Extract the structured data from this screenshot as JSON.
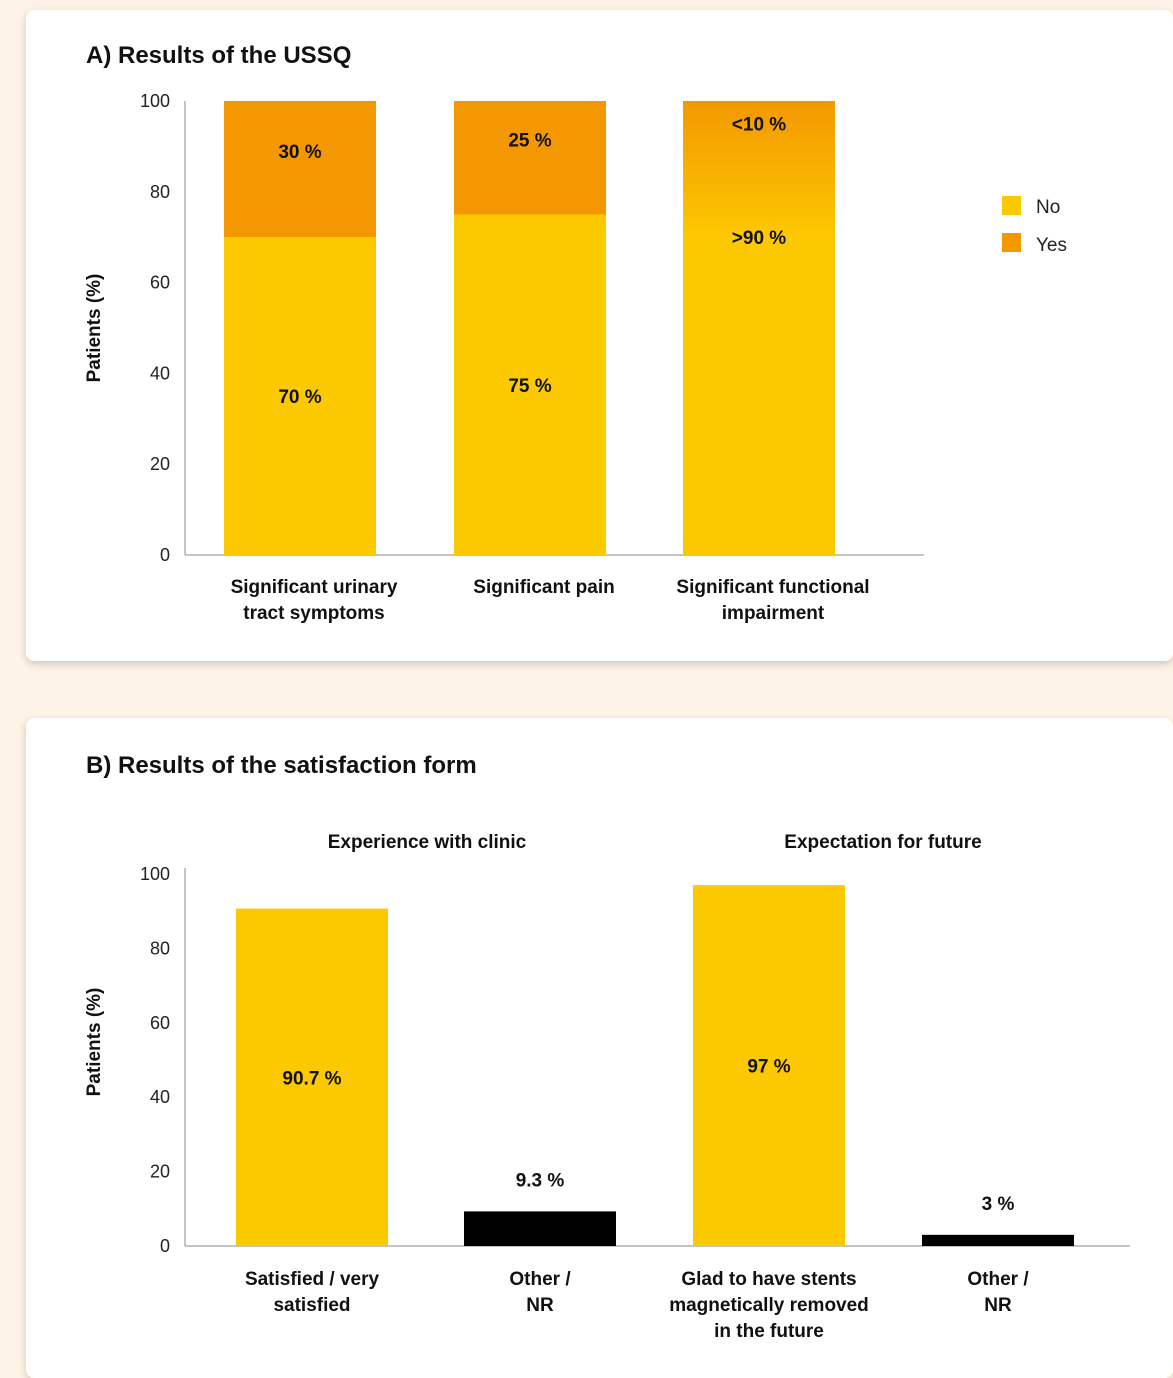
{
  "colors": {
    "no": "#fcc800",
    "yes": "#f39800",
    "other": "#000000",
    "axis": "#888888"
  },
  "chart_data": [
    {
      "type": "bar",
      "stacked": true,
      "title": "A) Results of the USSQ",
      "ylabel": "Patients (%)",
      "ylim": [
        0,
        100
      ],
      "yticks": [
        0,
        20,
        40,
        60,
        80,
        100
      ],
      "categories": [
        [
          "Significant urinary",
          "tract symptoms"
        ],
        [
          "Significant pain"
        ],
        [
          "Significant functional",
          "impairment"
        ]
      ],
      "series": [
        {
          "name": "No",
          "values": [
            70,
            75,
            92
          ],
          "labels": [
            "70 %",
            "75 %",
            ">90 %"
          ]
        },
        {
          "name": "Yes",
          "values": [
            30,
            25,
            8
          ],
          "labels": [
            "30 %",
            "25 %",
            "<10 %"
          ]
        }
      ],
      "legend": "right"
    },
    {
      "type": "bar",
      "title": "B) Results of the satisfaction form",
      "ylabel": "Patients (%)",
      "ylim": [
        0,
        100
      ],
      "yticks": [
        0,
        20,
        40,
        60,
        80,
        100
      ],
      "groups": [
        "Experience with clinic",
        "Expectation for future"
      ],
      "categories": [
        [
          "Satisfied / very",
          "satisfied"
        ],
        [
          "Other /",
          "NR"
        ],
        [
          "Glad to have stents",
          "magnetically removed",
          "in the future"
        ],
        [
          "Other /",
          "NR"
        ]
      ],
      "values": [
        90.7,
        9.3,
        97,
        3
      ],
      "labels": [
        "90.7 %",
        "9.3 %",
        "97 %",
        "3 %"
      ]
    }
  ]
}
